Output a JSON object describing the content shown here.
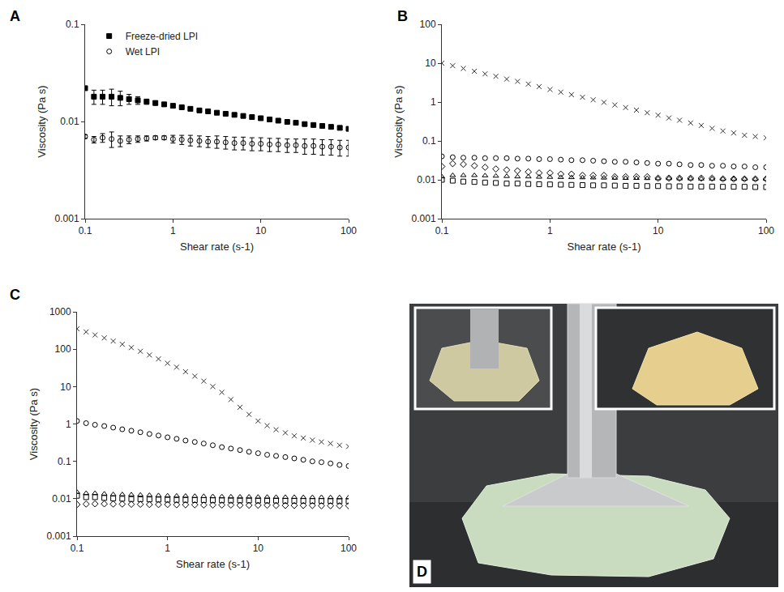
{
  "chart_data": [
    {
      "panel": "A",
      "type": "scatter",
      "log": true,
      "legend": "top left",
      "xlabel": "Shear rate (s-1)",
      "ylabel": "Viscosity (Pa s)",
      "xlim": [
        0.1,
        100
      ],
      "ylim": [
        0.001,
        0.1
      ],
      "xticks": [
        0.1,
        1,
        10,
        100
      ],
      "yticks": [
        0.001,
        0.01,
        0.1
      ],
      "x": [
        0.1,
        0.126,
        0.158,
        0.2,
        0.251,
        0.316,
        0.398,
        0.501,
        0.631,
        0.794,
        1,
        1.26,
        1.58,
        2,
        2.51,
        3.16,
        3.98,
        5.01,
        6.31,
        7.94,
        10,
        12.6,
        15.8,
        20,
        25.1,
        31.6,
        39.8,
        50.1,
        63.1,
        79.4,
        100
      ],
      "series": [
        {
          "name": "Freeze-dried LPI",
          "color": "#000000",
          "marker": "square",
          "values": [
            0.022,
            0.018,
            0.018,
            0.018,
            0.0175,
            0.017,
            0.0165,
            0.016,
            0.0155,
            0.015,
            0.0145,
            0.014,
            0.0135,
            0.013,
            0.0127,
            0.0123,
            0.012,
            0.0117,
            0.0114,
            0.0111,
            0.0108,
            0.0105,
            0.0102,
            0.0099,
            0.0097,
            0.0094,
            0.0092,
            0.009,
            0.0088,
            0.0086,
            0.0084
          ],
          "error": [
            0,
            0.003,
            0.003,
            0.0035,
            0.003,
            0.002,
            0.0015,
            0.001,
            0.0008,
            0.0006,
            0.0005,
            0.0004,
            0.0004,
            0.0003,
            0.0003,
            0.0003,
            0.0003,
            0.0003,
            0.0003,
            0.0003,
            0.0003,
            0.0003,
            0.0003,
            0.0003,
            0.0003,
            0.0003,
            0.0003,
            0.0003,
            0.0003,
            0.0003,
            0.0003
          ]
        },
        {
          "name": "Wet LPI",
          "color": "#000000",
          "marker": "circle-open",
          "values": [
            0.007,
            0.0065,
            0.0068,
            0.0066,
            0.0063,
            0.0065,
            0.0066,
            0.0067,
            0.0068,
            0.0068,
            0.0066,
            0.0065,
            0.0064,
            0.0063,
            0.0062,
            0.0062,
            0.0061,
            0.006,
            0.006,
            0.0059,
            0.0059,
            0.0058,
            0.0058,
            0.0057,
            0.0057,
            0.0056,
            0.0056,
            0.0055,
            0.0055,
            0.0054,
            0.0054
          ],
          "error": [
            0.0003,
            0.0005,
            0.0007,
            0.0012,
            0.0008,
            0.0006,
            0.0005,
            0.0004,
            0.0003,
            0.0003,
            0.0006,
            0.0007,
            0.0008,
            0.0008,
            0.0008,
            0.0009,
            0.0009,
            0.0009,
            0.0009,
            0.0009,
            0.0009,
            0.0009,
            0.0009,
            0.0009,
            0.0009,
            0.001,
            0.001,
            0.001,
            0.001,
            0.001,
            0.001
          ]
        }
      ]
    },
    {
      "panel": "B",
      "type": "scatter",
      "log": true,
      "xlabel": "Shear rate (s-1)",
      "ylabel": "Viscosity (Pa s)",
      "xlim": [
        0.1,
        100
      ],
      "ylim": [
        0.001,
        100
      ],
      "xticks": [
        0.1,
        1,
        10,
        100
      ],
      "yticks": [
        0.001,
        0.01,
        0.1,
        1,
        10,
        100
      ],
      "x": [
        0.1,
        0.126,
        0.158,
        0.2,
        0.251,
        0.316,
        0.398,
        0.501,
        0.631,
        0.794,
        1,
        1.26,
        1.58,
        2,
        2.51,
        3.16,
        3.98,
        5.01,
        6.31,
        7.94,
        10,
        12.6,
        15.8,
        20,
        25.1,
        31.6,
        39.8,
        50.1,
        63.1,
        79.4,
        100
      ],
      "series": [
        {
          "color": "#333333",
          "marker": "x-thin-open",
          "values": [
            10,
            8.6,
            7.3,
            6.2,
            5.3,
            4.6,
            3.9,
            3.4,
            2.9,
            2.5,
            2.1,
            1.8,
            1.55,
            1.33,
            1.14,
            0.98,
            0.84,
            0.72,
            0.62,
            0.53,
            0.46,
            0.39,
            0.34,
            0.29,
            0.25,
            0.21,
            0.18,
            0.16,
            0.14,
            0.13,
            0.12
          ]
        },
        {
          "color": "#000000",
          "marker": "circle-open",
          "values": [
            0.04,
            0.038,
            0.037,
            0.037,
            0.036,
            0.036,
            0.036,
            0.035,
            0.035,
            0.034,
            0.034,
            0.033,
            0.032,
            0.032,
            0.031,
            0.03,
            0.029,
            0.029,
            0.028,
            0.027,
            0.026,
            0.026,
            0.025,
            0.024,
            0.024,
            0.023,
            0.023,
            0.022,
            0.022,
            0.021,
            0.021
          ]
        },
        {
          "color": "#000000",
          "marker": "diamond-open",
          "values": [
            0.022,
            0.026,
            0.025,
            0.023,
            0.021,
            0.019,
            0.018,
            0.017,
            0.016,
            0.015,
            0.015,
            0.014,
            0.014,
            0.013,
            0.013,
            0.013,
            0.012,
            0.012,
            0.012,
            0.012,
            0.011,
            0.011,
            0.011,
            0.011,
            0.011,
            0.011,
            0.0105,
            0.0105,
            0.0105,
            0.0105,
            0.0105
          ]
        },
        {
          "color": "#000000",
          "marker": "triangle-up-open",
          "values": [
            0.012,
            0.013,
            0.013,
            0.013,
            0.0128,
            0.0125,
            0.0123,
            0.012,
            0.012,
            0.0118,
            0.0117,
            0.0116,
            0.0115,
            0.0114,
            0.0113,
            0.0112,
            0.0111,
            0.011,
            0.011,
            0.0109,
            0.0108,
            0.0108,
            0.0107,
            0.0107,
            0.0106,
            0.0106,
            0.0105,
            0.0105,
            0.0105,
            0.0104,
            0.0104
          ]
        },
        {
          "color": "#000000",
          "marker": "square-open",
          "values": [
            0.01,
            0.0095,
            0.009,
            0.0088,
            0.0085,
            0.0083,
            0.008,
            0.008,
            0.0078,
            0.0077,
            0.0076,
            0.0075,
            0.0074,
            0.0073,
            0.0072,
            0.0072,
            0.0071,
            0.007,
            0.007,
            0.0069,
            0.0069,
            0.0068,
            0.0068,
            0.0067,
            0.0067,
            0.0067,
            0.0066,
            0.0066,
            0.0066,
            0.0065,
            0.0065
          ]
        }
      ]
    },
    {
      "panel": "C",
      "type": "scatter",
      "log": true,
      "xlabel": "Shear rate (s-1)",
      "ylabel": "Viscosity (Pa s)",
      "xlim": [
        0.1,
        100
      ],
      "ylim": [
        0.001,
        1000
      ],
      "xticks": [
        0.1,
        1,
        10,
        100
      ],
      "yticks": [
        0.001,
        0.01,
        0.1,
        1,
        10,
        100,
        1000
      ],
      "x": [
        0.1,
        0.126,
        0.158,
        0.2,
        0.251,
        0.316,
        0.398,
        0.501,
        0.631,
        0.794,
        1,
        1.26,
        1.58,
        2,
        2.51,
        3.16,
        3.98,
        5.01,
        6.31,
        7.94,
        10,
        12.6,
        15.8,
        20,
        25.1,
        31.6,
        39.8,
        50.1,
        63.1,
        79.4,
        100
      ],
      "series": [
        {
          "color": "#333333",
          "marker": "x-thin-open",
          "values": [
            350,
            290,
            240,
            200,
            165,
            135,
            110,
            88,
            70,
            55,
            42,
            33,
            25,
            19,
            14,
            10,
            7,
            4.5,
            2.8,
            1.8,
            1.2,
            0.9,
            0.7,
            0.58,
            0.48,
            0.42,
            0.37,
            0.33,
            0.3,
            0.27,
            0.25
          ]
        },
        {
          "color": "#000000",
          "marker": "circle-open",
          "values": [
            1.2,
            1.05,
            0.95,
            0.88,
            0.8,
            0.72,
            0.66,
            0.6,
            0.54,
            0.49,
            0.44,
            0.4,
            0.36,
            0.33,
            0.3,
            0.27,
            0.24,
            0.22,
            0.2,
            0.18,
            0.165,
            0.15,
            0.14,
            0.13,
            0.12,
            0.11,
            0.1,
            0.095,
            0.088,
            0.08,
            0.075
          ]
        },
        {
          "color": "#000000",
          "marker": "triangle-up-open",
          "values": [
            0.015,
            0.014,
            0.014,
            0.0135,
            0.013,
            0.013,
            0.0128,
            0.0126,
            0.0124,
            0.0122,
            0.012,
            0.0119,
            0.0118,
            0.0117,
            0.0116,
            0.0115,
            0.0114,
            0.0113,
            0.0112,
            0.0112,
            0.0111,
            0.0111,
            0.011,
            0.011,
            0.011,
            0.0109,
            0.0109,
            0.0109,
            0.0108,
            0.0108,
            0.0108
          ]
        },
        {
          "color": "#000000",
          "marker": "square-open",
          "values": [
            0.012,
            0.011,
            0.011,
            0.0105,
            0.0102,
            0.01,
            0.0098,
            0.0097,
            0.0096,
            0.0095,
            0.0094,
            0.0093,
            0.0093,
            0.0092,
            0.0092,
            0.0091,
            0.0091,
            0.009,
            0.009,
            0.009,
            0.0089,
            0.0089,
            0.0089,
            0.0088,
            0.0088,
            0.0088,
            0.0087,
            0.0087,
            0.0087,
            0.0086,
            0.0086
          ]
        },
        {
          "color": "#000000",
          "marker": "diamond-open",
          "values": [
            0.007,
            0.0072,
            0.0073,
            0.0073,
            0.0072,
            0.0072,
            0.0071,
            0.0071,
            0.007,
            0.007,
            0.007,
            0.0069,
            0.0069,
            0.0069,
            0.0068,
            0.0068,
            0.0068,
            0.0068,
            0.0067,
            0.0067,
            0.0067,
            0.0067,
            0.0066,
            0.0066,
            0.0066,
            0.0066,
            0.0066,
            0.0065,
            0.0065,
            0.0065,
            0.0065
          ]
        }
      ]
    }
  ],
  "photo": {
    "panel": "D"
  }
}
